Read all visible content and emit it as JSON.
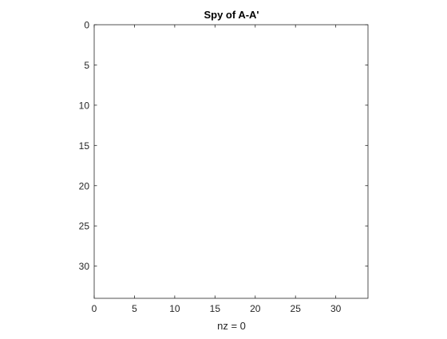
{
  "chart_data": {
    "type": "scatter",
    "title": "Spy of A-A'",
    "xlabel": "nz = 0",
    "ylabel": "",
    "xlim": [
      0,
      34
    ],
    "ylim": [
      0,
      34
    ],
    "y_reversed": true,
    "xticks": [
      0,
      5,
      10,
      15,
      20,
      25,
      30
    ],
    "yticks": [
      0,
      5,
      10,
      15,
      20,
      25,
      30
    ],
    "points": [],
    "grid": false,
    "legend": "none"
  },
  "colors": {
    "axes": "#262626",
    "background": "#ffffff",
    "marker": "#0072bd"
  }
}
